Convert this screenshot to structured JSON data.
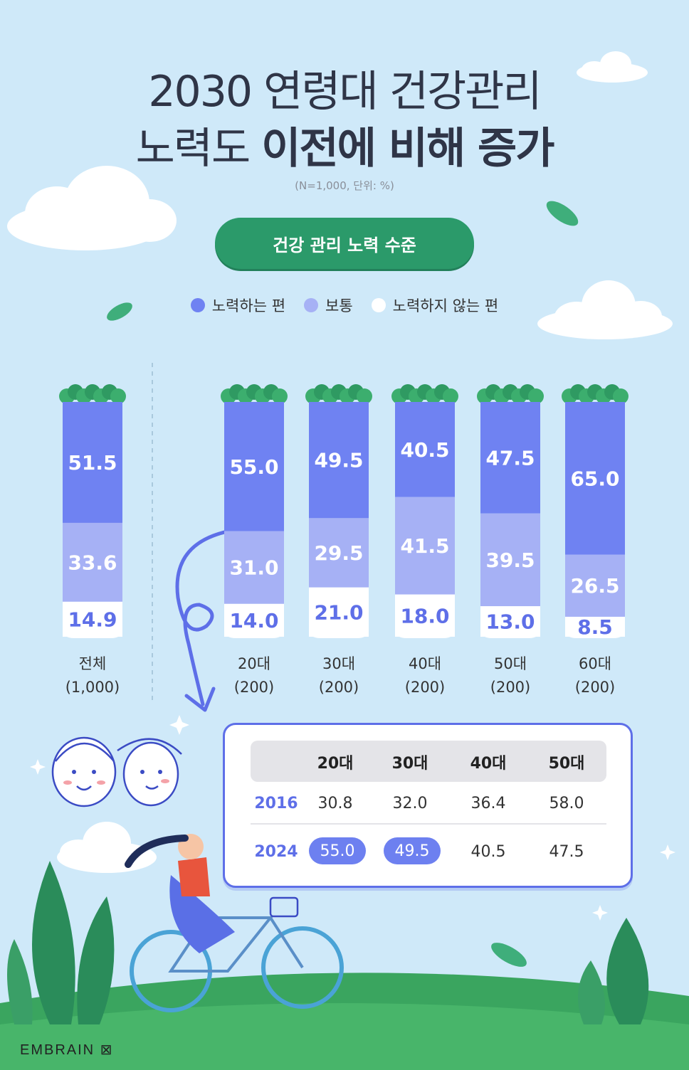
{
  "title": {
    "line1": "2030 연령대 건강관리",
    "line2_regular": "노력도 ",
    "line2_bold": "이전에 비해 증가"
  },
  "note": "(N=1,000, 단위: %)",
  "section_label": "건강 관리 노력 수준",
  "colors": {
    "effort": "#6f82f2",
    "normal": "#a6b1f5",
    "no_effort": "#ffffff",
    "green": "#2b9a6a",
    "background": "#cfe9f9"
  },
  "legend": [
    {
      "label": "노력하는 편",
      "color": "#6f82f2"
    },
    {
      "label": "보통",
      "color": "#a6b1f5"
    },
    {
      "label": "노력하지 않는 편",
      "color": "#ffffff"
    }
  ],
  "chart_data": {
    "type": "bar",
    "stacked": true,
    "categories": [
      "전체",
      "20대",
      "30대",
      "40대",
      "50대",
      "60대"
    ],
    "category_n": [
      "(1,000)",
      "(200)",
      "(200)",
      "(200)",
      "(200)",
      "(200)"
    ],
    "series": [
      {
        "name": "노력하는 편",
        "values": [
          51.5,
          55.0,
          49.5,
          40.5,
          47.5,
          65.0
        ]
      },
      {
        "name": "보통",
        "values": [
          33.6,
          31.0,
          29.5,
          41.5,
          39.5,
          26.5
        ]
      },
      {
        "name": "노력하지 않는 편",
        "values": [
          14.9,
          14.0,
          21.0,
          18.0,
          13.0,
          8.5
        ]
      }
    ]
  },
  "comparison_table": {
    "columns": [
      "20대",
      "30대",
      "40대",
      "50대"
    ],
    "rows": [
      {
        "year": "2016",
        "values": [
          "30.8",
          "32.0",
          "36.4",
          "58.0"
        ]
      },
      {
        "year": "2024",
        "values": [
          "55.0",
          "49.5",
          "40.5",
          "47.5"
        ]
      }
    ]
  },
  "brand": "EMBRAIN"
}
